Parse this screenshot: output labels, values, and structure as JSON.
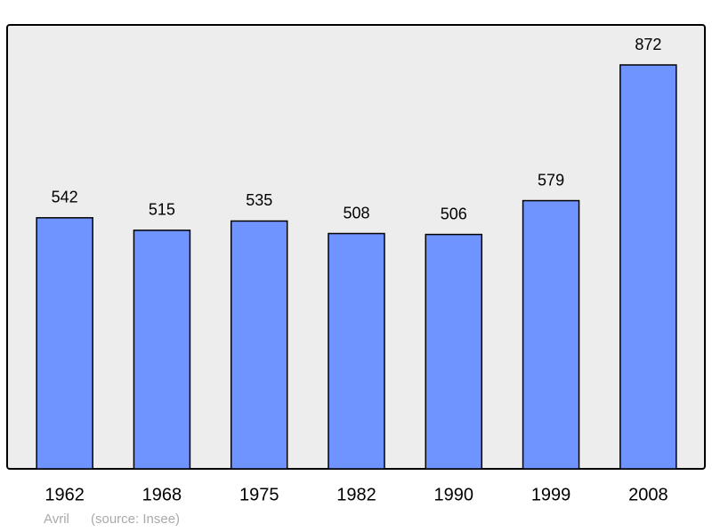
{
  "chart_data": {
    "type": "bar",
    "categories": [
      "1962",
      "1968",
      "1975",
      "1982",
      "1990",
      "1999",
      "2008"
    ],
    "values": [
      542,
      515,
      535,
      508,
      506,
      579,
      872
    ],
    "color": "#7094ff",
    "caption": "Avril",
    "source": "(source: Insee)"
  }
}
